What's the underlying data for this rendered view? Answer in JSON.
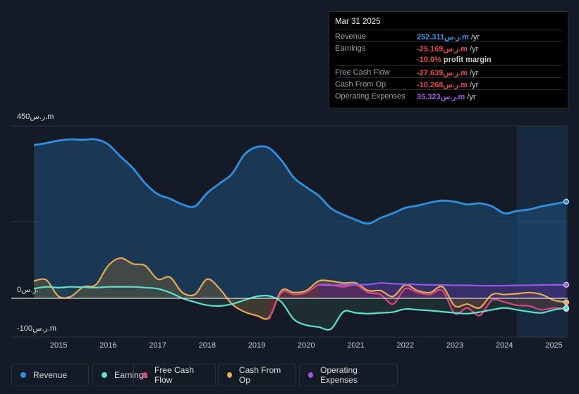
{
  "tooltip": {
    "date": "Mar 31 2025",
    "rows": [
      {
        "label": "Revenue",
        "value": "252.311ر.س.m",
        "unit": "/yr",
        "color": "#3a9be8"
      },
      {
        "label": "Earnings",
        "value": "-25.169ر.س.m",
        "unit": "/yr",
        "color": "#e84a4a"
      },
      {
        "label": "",
        "value": "-10.0%",
        "unit": "profit margin",
        "color": "#e84a4a"
      },
      {
        "label": "Free Cash Flow",
        "value": "-27.639ر.س.m",
        "unit": "/yr",
        "color": "#e84a4a"
      },
      {
        "label": "Cash From Op",
        "value": "-10.268ر.س.m",
        "unit": "/yr",
        "color": "#e84a4a"
      },
      {
        "label": "Operating Expenses",
        "value": "35.323ر.س.m",
        "unit": "/yr",
        "color": "#a25ae8"
      }
    ]
  },
  "legend": [
    {
      "name": "Revenue",
      "color": "#2f8fe0"
    },
    {
      "name": "Earnings",
      "color": "#5fe0cc"
    },
    {
      "name": "Free Cash Flow",
      "color": "#d4477e"
    },
    {
      "name": "Cash From Op",
      "color": "#e8a958"
    },
    {
      "name": "Operating Expenses",
      "color": "#9c56e6"
    }
  ],
  "chart_data": {
    "type": "area",
    "title": "",
    "y_unit": "ر.س.m",
    "ylim": [
      -100,
      450
    ],
    "ytick_labels": [
      "450ر.س.m",
      "0ر.س.",
      "-100ر.س.m"
    ],
    "xlim": [
      2014.5,
      2025.25
    ],
    "xtick_labels": [
      "2015",
      "2016",
      "2017",
      "2018",
      "2019",
      "2020",
      "2021",
      "2022",
      "2023",
      "2024",
      "2025"
    ],
    "highlight_start": 2024.25,
    "series": [
      {
        "name": "Revenue",
        "color": "#2f8fe0",
        "points": [
          [
            2014.5,
            400
          ],
          [
            2014.75,
            405
          ],
          [
            2015.0,
            412
          ],
          [
            2015.25,
            415
          ],
          [
            2015.5,
            414
          ],
          [
            2015.75,
            415
          ],
          [
            2016.0,
            402
          ],
          [
            2016.25,
            370
          ],
          [
            2016.5,
            340
          ],
          [
            2016.75,
            300
          ],
          [
            2017.0,
            272
          ],
          [
            2017.25,
            260
          ],
          [
            2017.5,
            245
          ],
          [
            2017.75,
            240
          ],
          [
            2018.0,
            275
          ],
          [
            2018.25,
            300
          ],
          [
            2018.5,
            325
          ],
          [
            2018.75,
            375
          ],
          [
            2019.0,
            395
          ],
          [
            2019.25,
            392
          ],
          [
            2019.5,
            360
          ],
          [
            2019.75,
            315
          ],
          [
            2020.0,
            290
          ],
          [
            2020.25,
            268
          ],
          [
            2020.5,
            235
          ],
          [
            2020.75,
            218
          ],
          [
            2021.0,
            205
          ],
          [
            2021.25,
            195
          ],
          [
            2021.5,
            210
          ],
          [
            2021.75,
            222
          ],
          [
            2022.0,
            236
          ],
          [
            2022.25,
            242
          ],
          [
            2022.5,
            250
          ],
          [
            2022.75,
            255
          ],
          [
            2023.0,
            252
          ],
          [
            2023.25,
            245
          ],
          [
            2023.5,
            248
          ],
          [
            2023.75,
            240
          ],
          [
            2024.0,
            222
          ],
          [
            2024.25,
            228
          ],
          [
            2024.5,
            232
          ],
          [
            2024.75,
            240
          ],
          [
            2025.0,
            246
          ],
          [
            2025.25,
            252.3
          ]
        ]
      },
      {
        "name": "Earnings",
        "color": "#5fe0cc",
        "points": [
          [
            2014.5,
            25
          ],
          [
            2014.75,
            30
          ],
          [
            2015.0,
            28
          ],
          [
            2015.25,
            30
          ],
          [
            2015.5,
            29
          ],
          [
            2015.75,
            28
          ],
          [
            2016.0,
            30
          ],
          [
            2016.25,
            30
          ],
          [
            2016.5,
            30
          ],
          [
            2016.75,
            28
          ],
          [
            2017.0,
            25
          ],
          [
            2017.25,
            15
          ],
          [
            2017.5,
            0
          ],
          [
            2017.75,
            -10
          ],
          [
            2018.0,
            -18
          ],
          [
            2018.25,
            -20
          ],
          [
            2018.5,
            -15
          ],
          [
            2018.75,
            -5
          ],
          [
            2019.0,
            5
          ],
          [
            2019.25,
            6
          ],
          [
            2019.5,
            -10
          ],
          [
            2019.75,
            -55
          ],
          [
            2020.0,
            -70
          ],
          [
            2020.25,
            -75
          ],
          [
            2020.5,
            -80
          ],
          [
            2020.75,
            -35
          ],
          [
            2021.0,
            -38
          ],
          [
            2021.25,
            -40
          ],
          [
            2021.5,
            -38
          ],
          [
            2021.75,
            -36
          ],
          [
            2022.0,
            -28
          ],
          [
            2022.25,
            -30
          ],
          [
            2022.5,
            -32
          ],
          [
            2022.75,
            -35
          ],
          [
            2023.0,
            -38
          ],
          [
            2023.25,
            -40
          ],
          [
            2023.5,
            -36
          ],
          [
            2023.75,
            -30
          ],
          [
            2024.0,
            -25
          ],
          [
            2024.25,
            -30
          ],
          [
            2024.5,
            -35
          ],
          [
            2024.75,
            -38
          ],
          [
            2025.0,
            -30
          ],
          [
            2025.25,
            -25.2
          ]
        ]
      },
      {
        "name": "Free Cash Flow",
        "color": "#d4477e",
        "points": [
          [
            2019.25,
            -55
          ],
          [
            2019.5,
            15
          ],
          [
            2019.75,
            10
          ],
          [
            2020.0,
            15
          ],
          [
            2020.25,
            35
          ],
          [
            2020.5,
            35
          ],
          [
            2020.75,
            30
          ],
          [
            2021.0,
            35
          ],
          [
            2021.25,
            15
          ],
          [
            2021.5,
            10
          ],
          [
            2021.75,
            -15
          ],
          [
            2022.0,
            25
          ],
          [
            2022.25,
            15
          ],
          [
            2022.5,
            10
          ],
          [
            2022.75,
            20
          ],
          [
            2023.0,
            -40
          ],
          [
            2023.25,
            -25
          ],
          [
            2023.5,
            -45
          ],
          [
            2023.75,
            -5
          ],
          [
            2024.0,
            -10
          ],
          [
            2024.25,
            -18
          ],
          [
            2024.5,
            -20
          ],
          [
            2024.75,
            -30
          ],
          [
            2025.0,
            -25
          ],
          [
            2025.25,
            -27.6
          ]
        ]
      },
      {
        "name": "Cash From Op",
        "color": "#e8a958",
        "points": [
          [
            2014.5,
            45
          ],
          [
            2014.75,
            48
          ],
          [
            2015.0,
            5
          ],
          [
            2015.25,
            5
          ],
          [
            2015.5,
            30
          ],
          [
            2015.75,
            35
          ],
          [
            2016.0,
            85
          ],
          [
            2016.25,
            105
          ],
          [
            2016.5,
            90
          ],
          [
            2016.75,
            85
          ],
          [
            2017.0,
            50
          ],
          [
            2017.25,
            55
          ],
          [
            2017.5,
            15
          ],
          [
            2017.75,
            10
          ],
          [
            2018.0,
            50
          ],
          [
            2018.25,
            25
          ],
          [
            2018.5,
            -15
          ],
          [
            2018.75,
            -35
          ],
          [
            2019.0,
            -45
          ],
          [
            2019.25,
            -50
          ],
          [
            2019.5,
            20
          ],
          [
            2019.75,
            15
          ],
          [
            2020.0,
            20
          ],
          [
            2020.25,
            45
          ],
          [
            2020.5,
            45
          ],
          [
            2020.75,
            40
          ],
          [
            2021.0,
            40
          ],
          [
            2021.25,
            20
          ],
          [
            2021.5,
            20
          ],
          [
            2021.75,
            5
          ],
          [
            2022.0,
            35
          ],
          [
            2022.25,
            20
          ],
          [
            2022.5,
            15
          ],
          [
            2022.75,
            30
          ],
          [
            2023.0,
            -20
          ],
          [
            2023.25,
            -15
          ],
          [
            2023.5,
            -25
          ],
          [
            2023.75,
            10
          ],
          [
            2024.0,
            10
          ],
          [
            2024.25,
            12
          ],
          [
            2024.5,
            15
          ],
          [
            2024.75,
            10
          ],
          [
            2025.0,
            -5
          ],
          [
            2025.25,
            -10.3
          ]
        ]
      },
      {
        "name": "Operating Expenses",
        "color": "#9c56e6",
        "points": [
          [
            2020.25,
            35
          ],
          [
            2020.5,
            34
          ],
          [
            2020.75,
            35
          ],
          [
            2021.0,
            36
          ],
          [
            2021.25,
            36
          ],
          [
            2021.5,
            40
          ],
          [
            2021.75,
            38
          ],
          [
            2022.0,
            37
          ],
          [
            2022.25,
            36
          ],
          [
            2022.5,
            35
          ],
          [
            2022.75,
            35
          ],
          [
            2023.0,
            34
          ],
          [
            2023.25,
            34
          ],
          [
            2023.5,
            33
          ],
          [
            2023.75,
            33
          ],
          [
            2024.0,
            33
          ],
          [
            2024.25,
            34
          ],
          [
            2024.5,
            34
          ],
          [
            2024.75,
            35
          ],
          [
            2025.0,
            35
          ],
          [
            2025.25,
            35.3
          ]
        ]
      }
    ]
  }
}
